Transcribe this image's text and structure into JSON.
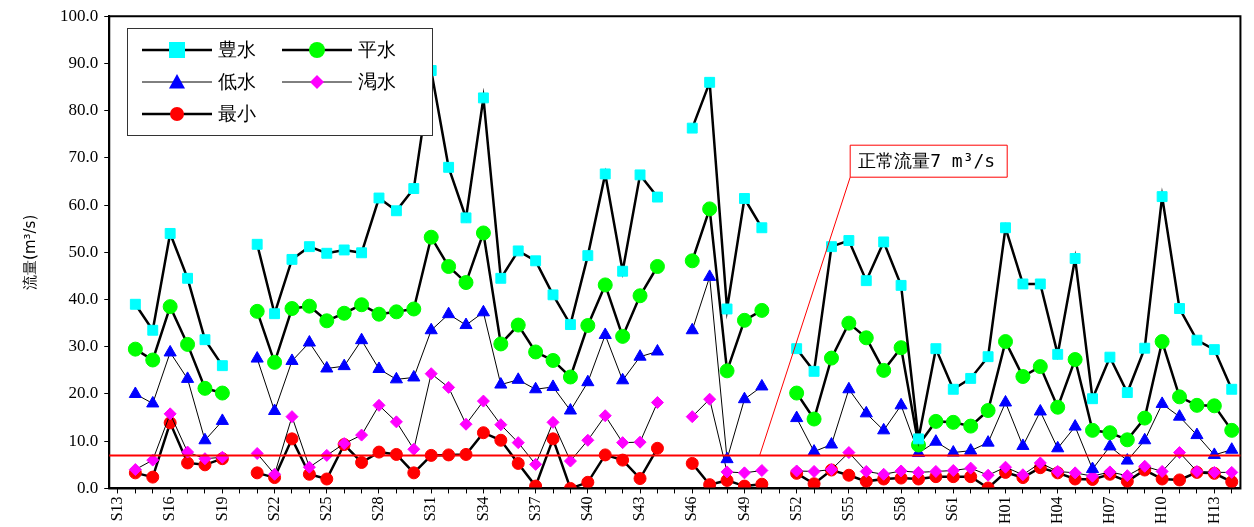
{
  "chart_data": {
    "type": "line",
    "ylabel": "流量(m³/s)",
    "categories": [
      "S13",
      null,
      null,
      "S16",
      null,
      null,
      "S19",
      null,
      null,
      "S22",
      null,
      null,
      "S25",
      null,
      null,
      "S28",
      null,
      null,
      "S31",
      null,
      null,
      "S34",
      null,
      null,
      "S37",
      null,
      null,
      "S40",
      null,
      null,
      "S43",
      null,
      null,
      "S46",
      null,
      null,
      "S49",
      null,
      null,
      "S52",
      null,
      null,
      "S55",
      null,
      null,
      "S58",
      null,
      null,
      "S61",
      null,
      null,
      "H01",
      null,
      null,
      "H04",
      null,
      null,
      "H07",
      null,
      null,
      "H10",
      null,
      null,
      "H13",
      null
    ],
    "series": [
      {
        "name": "豊水",
        "color": "#00ffff",
        "marker": "square",
        "values": [
          null,
          39.0,
          33.5,
          54.0,
          44.5,
          31.5,
          26.0,
          null,
          51.7,
          37.0,
          48.5,
          51.2,
          49.8,
          50.5,
          49.9,
          61.5,
          58.8,
          63.5,
          88.5,
          68.0,
          57.3,
          82.7,
          44.5,
          50.3,
          48.2,
          41.0,
          34.7,
          49.3,
          66.6,
          46.0,
          66.4,
          61.7,
          null,
          76.3,
          86.0,
          38.0,
          61.4,
          55.2,
          null,
          29.6,
          24.8,
          51.2,
          52.5,
          44.0,
          52.2,
          43.0,
          10.5,
          29.6,
          21.0,
          23.3,
          27.9,
          55.2,
          43.3,
          43.3,
          28.4,
          48.7,
          19.0,
          27.8,
          20.3,
          29.7,
          61.8,
          38.1,
          31.4,
          29.4,
          21.0
        ]
      },
      {
        "name": "平水",
        "color": "#00ff00",
        "marker": "circle",
        "values": [
          null,
          29.5,
          27.2,
          38.5,
          30.5,
          21.2,
          20.2,
          null,
          37.5,
          26.7,
          38.1,
          38.6,
          35.5,
          37.1,
          38.9,
          36.9,
          37.4,
          38.0,
          53.2,
          47.0,
          43.6,
          54.1,
          30.6,
          34.6,
          28.9,
          27.1,
          23.6,
          34.5,
          43.1,
          32.2,
          40.8,
          47.0,
          null,
          48.2,
          59.2,
          24.9,
          35.6,
          37.7,
          null,
          20.2,
          14.7,
          27.6,
          35.0,
          31.9,
          25.0,
          29.8,
          9.2,
          14.2,
          14.0,
          13.2,
          16.5,
          31.1,
          23.7,
          25.8,
          17.2,
          27.3,
          12.3,
          11.8,
          10.3,
          14.9,
          31.1,
          19.4,
          17.6,
          17.5,
          12.3
        ]
      },
      {
        "name": "低水",
        "color": "#0000ff",
        "marker": "triangle",
        "values": [
          null,
          20.0,
          18.0,
          28.8,
          23.2,
          10.2,
          14.3,
          null,
          27.5,
          16.4,
          27.0,
          30.9,
          25.4,
          25.9,
          31.4,
          25.3,
          23.1,
          23.5,
          33.5,
          36.9,
          34.6,
          37.3,
          22.0,
          23.0,
          21.0,
          21.5,
          16.5,
          22.5,
          32.5,
          22.9,
          27.9,
          29.0,
          null,
          33.5,
          44.8,
          6.2,
          18.9,
          21.6,
          null,
          14.9,
          7.8,
          9.3,
          21.0,
          15.9,
          12.3,
          17.6,
          7.5,
          9.9,
          7.6,
          8.0,
          9.7,
          18.2,
          9.0,
          16.3,
          8.5,
          13.1,
          4.1,
          8.9,
          5.9,
          10.2,
          17.9,
          15.2,
          11.3,
          7.1,
          8.2
        ]
      },
      {
        "name": "渇水",
        "color": "#ff00ff",
        "marker": "diamond",
        "values": [
          null,
          4.0,
          6.0,
          15.8,
          7.7,
          6.3,
          6.6,
          null,
          7.4,
          3.0,
          15.2,
          4.5,
          7.0,
          9.5,
          11.3,
          17.6,
          14.1,
          8.3,
          24.3,
          21.4,
          13.6,
          18.5,
          13.5,
          9.7,
          5.1,
          14.0,
          5.8,
          10.2,
          15.4,
          9.7,
          9.8,
          18.2,
          null,
          15.2,
          18.9,
          3.5,
          3.3,
          3.8,
          null,
          3.7,
          3.6,
          4.0,
          7.6,
          3.6,
          3.0,
          3.7,
          3.4,
          3.6,
          3.8,
          4.3,
          2.8,
          4.5,
          2.9,
          5.4,
          3.6,
          3.3,
          2.6,
          3.5,
          2.7,
          4.7,
          3.6,
          7.6,
          3.6,
          3.4,
          3.4
        ]
      },
      {
        "name": "最小",
        "color": "#ff0000",
        "marker": "circle",
        "values": [
          null,
          3.3,
          2.4,
          13.9,
          5.4,
          5.0,
          6.3,
          null,
          3.3,
          2.3,
          10.5,
          3.0,
          2.0,
          9.3,
          5.5,
          7.7,
          7.2,
          3.3,
          7.0,
          7.1,
          7.2,
          11.8,
          10.2,
          5.3,
          0.5,
          10.5,
          0.0,
          1.3,
          7.1,
          6.0,
          2.1,
          8.5,
          null,
          5.3,
          0.8,
          1.7,
          0.5,
          0.9,
          null,
          3.2,
          1.0,
          3.9,
          2.8,
          1.5,
          2.0,
          2.2,
          2.0,
          2.5,
          2.5,
          2.5,
          0.1,
          3.4,
          2.3,
          4.4,
          3.3,
          2.0,
          1.9,
          3.0,
          1.5,
          3.9,
          2.0,
          1.8,
          3.4,
          3.2,
          1.4
        ]
      }
    ],
    "ylim": [
      0,
      100
    ],
    "yticks": [
      {
        "value": 0,
        "label": "0.0"
      },
      {
        "value": 10,
        "label": "10.0"
      },
      {
        "value": 20,
        "label": "20.0"
      },
      {
        "value": 30,
        "label": "30.0"
      },
      {
        "value": 40,
        "label": "40.0"
      },
      {
        "value": 50,
        "label": "50.0"
      },
      {
        "value": 60,
        "label": "60.0"
      },
      {
        "value": 70,
        "label": "70.0"
      },
      {
        "value": 80,
        "label": "80.0"
      },
      {
        "value": 90,
        "label": "90.0"
      },
      {
        "value": 100,
        "label": "100.0"
      }
    ],
    "ref_lines": [
      {
        "axis": "y",
        "value": 7,
        "label": "正常流量7 m³/s",
        "color": "#ff0000"
      }
    ],
    "legend": "top left",
    "grid": false
  }
}
